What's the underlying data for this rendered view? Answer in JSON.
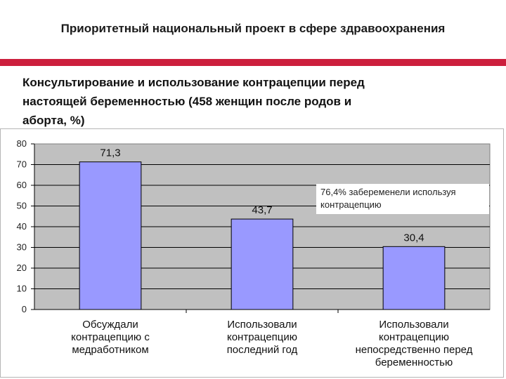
{
  "header": {
    "title": "Приоритетный национальный проект в сфере здравоохранения",
    "accent_color": "#cc1f3d"
  },
  "subtitle_lines": [
    "Консультирование и использование контрацепции перед",
    "настоящей беременностью (458 женщин после родов и",
    "аборта, %)"
  ],
  "chart_data": {
    "type": "bar",
    "categories": [
      [
        "Обсуждали",
        "контрацепцию с",
        "медработником"
      ],
      [
        "Использовали",
        "контрацепцию",
        "последний год"
      ],
      [
        "Использовали",
        "контрацепцию",
        "непосредственно перед",
        "беременностью"
      ]
    ],
    "values": [
      71.3,
      43.7,
      30.4
    ],
    "value_labels": [
      "71,3",
      "43,7",
      "30,4"
    ],
    "ylim": [
      0,
      80
    ],
    "yticks": [
      0,
      10,
      20,
      30,
      40,
      50,
      60,
      70,
      80
    ],
    "grid": true,
    "bar_color": "#9999ff",
    "plot_background": "#c0c0c0",
    "annotation": [
      "76,4% забеременели используя",
      "контрацепцию"
    ]
  }
}
